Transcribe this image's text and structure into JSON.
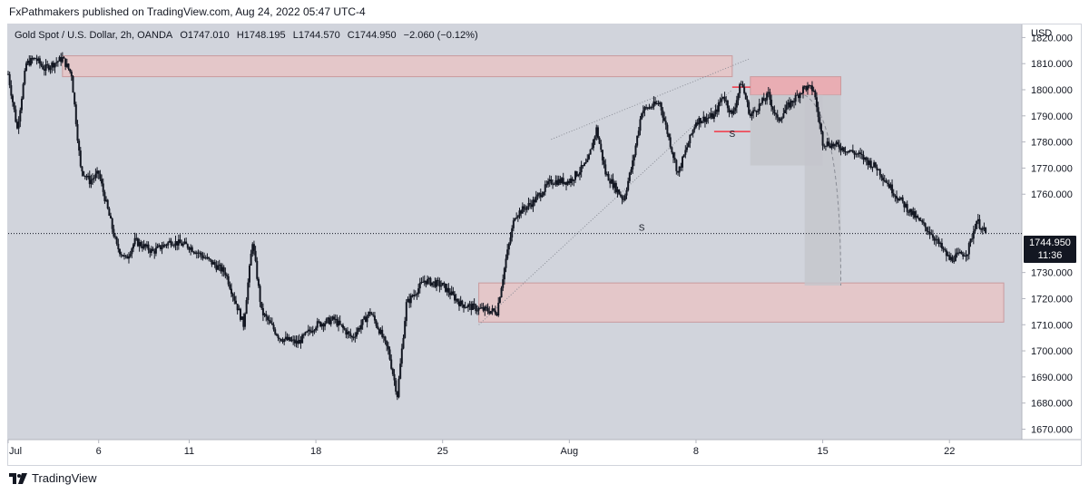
{
  "publish_line": "FxPathmakers published on TradingView.com, Aug 24, 2022 05:47 UTC-4",
  "legend": {
    "symbol": "Gold Spot / U.S. Dollar, 2h, OANDA",
    "open": "O1747.010",
    "high": "H1748.195",
    "low": "L1744.570",
    "close": "C1744.950",
    "change": "−2.060 (−0.12%)"
  },
  "currency": "USD",
  "current_price": {
    "value": "1744.950",
    "countdown": "11:36"
  },
  "brand": "TradingView",
  "colors": {
    "background": "#d1d4dc",
    "zone_fill": "#e7c4c6",
    "zone_border": "#c99a9e",
    "zone_strong": "#f0a0a6",
    "projection": "#c4c6cc",
    "candle": "#131722",
    "level_red": "#f23645"
  },
  "chart_data": {
    "type": "candlestick",
    "title": "Gold Spot / U.S. Dollar, 2h, OANDA",
    "ylim": [
      1666,
      1825
    ],
    "y_ticks": [
      "1820.000",
      "1810.000",
      "1800.000",
      "1790.000",
      "1780.000",
      "1770.000",
      "1760.000",
      "1750.000",
      "1740.000",
      "1730.000",
      "1720.000",
      "1710.000",
      "1700.000",
      "1690.000",
      "1680.000",
      "1670.000"
    ],
    "x_range": [
      "2022-07-01",
      "2022-08-26"
    ],
    "x_ticks": [
      {
        "label": "Jul",
        "date": "2022-07-01"
      },
      {
        "label": "6",
        "date": "2022-07-06"
      },
      {
        "label": "11",
        "date": "2022-07-11"
      },
      {
        "label": "18",
        "date": "2022-07-18"
      },
      {
        "label": "25",
        "date": "2022-07-25"
      },
      {
        "label": "Aug",
        "date": "2022-08-01"
      },
      {
        "label": "8",
        "date": "2022-08-08"
      },
      {
        "label": "15",
        "date": "2022-08-15"
      },
      {
        "label": "22",
        "date": "2022-08-22"
      }
    ],
    "price_path": [
      {
        "date": "2022-07-01",
        "value": 1806
      },
      {
        "date": "2022-07-01",
        "value": 1785
      },
      {
        "date": "2022-07-02",
        "value": 1810
      },
      {
        "date": "2022-07-02",
        "value": 1812
      },
      {
        "date": "2022-07-03",
        "value": 1808
      },
      {
        "date": "2022-07-04",
        "value": 1812
      },
      {
        "date": "2022-07-04",
        "value": 1806
      },
      {
        "date": "2022-07-05",
        "value": 1770
      },
      {
        "date": "2022-07-05",
        "value": 1765
      },
      {
        "date": "2022-07-06",
        "value": 1768
      },
      {
        "date": "2022-07-07",
        "value": 1740
      },
      {
        "date": "2022-07-07",
        "value": 1735
      },
      {
        "date": "2022-07-08",
        "value": 1742
      },
      {
        "date": "2022-07-09",
        "value": 1738
      },
      {
        "date": "2022-07-10",
        "value": 1742
      },
      {
        "date": "2022-07-11",
        "value": 1740
      },
      {
        "date": "2022-07-12",
        "value": 1735
      },
      {
        "date": "2022-07-13",
        "value": 1730
      },
      {
        "date": "2022-07-14",
        "value": 1710
      },
      {
        "date": "2022-07-14",
        "value": 1742
      },
      {
        "date": "2022-07-15",
        "value": 1715
      },
      {
        "date": "2022-07-16",
        "value": 1705
      },
      {
        "date": "2022-07-17",
        "value": 1703
      },
      {
        "date": "2022-07-18",
        "value": 1710
      },
      {
        "date": "2022-07-19",
        "value": 1712
      },
      {
        "date": "2022-07-20",
        "value": 1705
      },
      {
        "date": "2022-07-21",
        "value": 1715
      },
      {
        "date": "2022-07-21",
        "value": 1708
      },
      {
        "date": "2022-07-22",
        "value": 1700
      },
      {
        "date": "2022-07-22",
        "value": 1683
      },
      {
        "date": "2022-07-23",
        "value": 1718
      },
      {
        "date": "2022-07-24",
        "value": 1727
      },
      {
        "date": "2022-07-25",
        "value": 1725
      },
      {
        "date": "2022-07-26",
        "value": 1718
      },
      {
        "date": "2022-07-27",
        "value": 1716
      },
      {
        "date": "2022-07-28",
        "value": 1715
      },
      {
        "date": "2022-07-28",
        "value": 1735
      },
      {
        "date": "2022-07-29",
        "value": 1752
      },
      {
        "date": "2022-07-30",
        "value": 1757
      },
      {
        "date": "2022-07-31",
        "value": 1765
      },
      {
        "date": "2022-08-01",
        "value": 1765
      },
      {
        "date": "2022-08-02",
        "value": 1772
      },
      {
        "date": "2022-08-02",
        "value": 1785
      },
      {
        "date": "2022-08-03",
        "value": 1768
      },
      {
        "date": "2022-08-04",
        "value": 1758
      },
      {
        "date": "2022-08-04",
        "value": 1772
      },
      {
        "date": "2022-08-05",
        "value": 1792
      },
      {
        "date": "2022-08-06",
        "value": 1795
      },
      {
        "date": "2022-08-07",
        "value": 1768
      },
      {
        "date": "2022-08-07",
        "value": 1778
      },
      {
        "date": "2022-08-08",
        "value": 1788
      },
      {
        "date": "2022-08-09",
        "value": 1790
      },
      {
        "date": "2022-08-09",
        "value": 1798
      },
      {
        "date": "2022-08-10",
        "value": 1790
      },
      {
        "date": "2022-08-10",
        "value": 1803
      },
      {
        "date": "2022-08-11",
        "value": 1790
      },
      {
        "date": "2022-08-12",
        "value": 1798
      },
      {
        "date": "2022-08-12",
        "value": 1788
      },
      {
        "date": "2022-08-13",
        "value": 1793
      },
      {
        "date": "2022-08-14",
        "value": 1801
      },
      {
        "date": "2022-08-14",
        "value": 1800
      },
      {
        "date": "2022-08-15",
        "value": 1780
      },
      {
        "date": "2022-08-16",
        "value": 1778
      },
      {
        "date": "2022-08-17",
        "value": 1775
      },
      {
        "date": "2022-08-18",
        "value": 1770
      },
      {
        "date": "2022-08-19",
        "value": 1760
      },
      {
        "date": "2022-08-20",
        "value": 1752
      },
      {
        "date": "2022-08-21",
        "value": 1745
      },
      {
        "date": "2022-08-22",
        "value": 1735
      },
      {
        "date": "2022-08-23",
        "value": 1738
      },
      {
        "date": "2022-08-23",
        "value": 1750
      },
      {
        "date": "2022-08-24",
        "value": 1745
      }
    ],
    "zones": [
      {
        "from": "2022-07-04",
        "to": "2022-08-10",
        "low": 1805,
        "high": 1813
      },
      {
        "from": "2022-07-27",
        "to": "2022-08-25",
        "low": 1711,
        "high": 1726
      },
      {
        "from": "2022-08-11",
        "to": "2022-08-16",
        "low": 1798,
        "high": 1805
      }
    ],
    "projection_boxes": [
      {
        "from": "2022-08-11",
        "to": "2022-08-15",
        "low": 1771,
        "high": 1798
      },
      {
        "from": "2022-08-14",
        "to": "2022-08-16",
        "low": 1725,
        "high": 1798
      }
    ],
    "trendlines": [
      {
        "from": {
          "date": "2022-07-27",
          "value": 1710
        },
        "to": {
          "date": "2022-08-10",
          "value": 1800
        }
      },
      {
        "from": {
          "date": "2022-07-31",
          "value": 1781
        },
        "to": {
          "date": "2022-08-11",
          "value": 1812
        }
      }
    ],
    "levels": [
      {
        "from": "2022-08-09",
        "to": "2022-08-11",
        "value": 1784
      },
      {
        "from": "2022-08-10",
        "to": "2022-08-11",
        "value": 1801
      }
    ],
    "annotations": [
      {
        "text": "S",
        "date": "2022-08-05",
        "value": 1746
      },
      {
        "text": "S",
        "date": "2022-08-10",
        "value": 1782
      }
    ],
    "current_price_line": 1744.95
  }
}
